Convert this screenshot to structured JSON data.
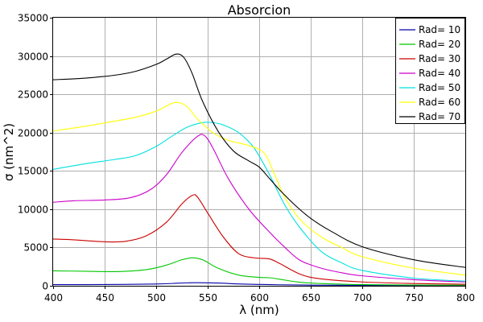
{
  "chart_data": {
    "type": "line",
    "title": "Absorcion",
    "xlabel": "λ (nm)",
    "ylabel": "σ (nm^2)",
    "xlim": [
      400,
      800
    ],
    "ylim": [
      0,
      35000
    ],
    "xticks": [
      400,
      450,
      500,
      550,
      600,
      650,
      700,
      750,
      800
    ],
    "yticks": [
      0,
      5000,
      10000,
      15000,
      20000,
      25000,
      30000,
      35000
    ],
    "grid": true,
    "legend_position": "top-right",
    "series": [
      {
        "name": "Rad= 10",
        "color": "#0000aa",
        "x": [
          400,
          450,
          500,
          520,
          530,
          540,
          560,
          580,
          600,
          620,
          650,
          700,
          800
        ],
        "y": [
          150,
          160,
          230,
          330,
          380,
          400,
          360,
          240,
          180,
          130,
          90,
          60,
          30
        ]
      },
      {
        "name": "Rad= 20",
        "color": "#00c800",
        "x": [
          400,
          430,
          460,
          490,
          510,
          525,
          535,
          545,
          560,
          580,
          600,
          610,
          620,
          640,
          660,
          700,
          750,
          800
        ],
        "y": [
          1950,
          1900,
          1850,
          2100,
          2700,
          3400,
          3650,
          3400,
          2300,
          1400,
          1100,
          1050,
          850,
          450,
          300,
          150,
          100,
          80
        ]
      },
      {
        "name": "Rad= 30",
        "color": "#cc0000",
        "x": [
          400,
          420,
          450,
          470,
          490,
          510,
          525,
          535,
          540,
          550,
          565,
          580,
          595,
          610,
          620,
          640,
          660,
          700,
          750,
          800
        ],
        "y": [
          6100,
          6000,
          5750,
          5800,
          6500,
          8300,
          10700,
          11800,
          11600,
          9500,
          6400,
          4200,
          3650,
          3500,
          2900,
          1500,
          900,
          500,
          300,
          200
        ]
      },
      {
        "name": "Rad= 40",
        "color": "#cc00cc",
        "x": [
          400,
          420,
          450,
          475,
          495,
          510,
          525,
          540,
          547,
          555,
          570,
          590,
          610,
          625,
          640,
          660,
          680,
          700,
          750,
          800
        ],
        "y": [
          10900,
          11100,
          11200,
          11500,
          12600,
          14500,
          17400,
          19500,
          19600,
          18000,
          14000,
          10000,
          7000,
          5000,
          3300,
          2300,
          1700,
          1300,
          800,
          500
        ]
      },
      {
        "name": "Rad= 50",
        "color": "#00e0e0",
        "x": [
          400,
          430,
          460,
          480,
          500,
          515,
          530,
          545,
          555,
          565,
          580,
          595,
          610,
          625,
          640,
          660,
          680,
          700,
          750,
          800
        ],
        "y": [
          15200,
          15900,
          16500,
          17000,
          18200,
          19500,
          20700,
          21300,
          21300,
          21000,
          20000,
          18000,
          14500,
          10500,
          7500,
          4500,
          3000,
          2000,
          1000,
          600
        ]
      },
      {
        "name": "Rad= 60",
        "color": "#ffff00",
        "x": [
          400,
          430,
          460,
          480,
          500,
          515,
          522,
          530,
          540,
          555,
          570,
          590,
          605,
          615,
          625,
          640,
          660,
          680,
          700,
          750,
          800
        ],
        "y": [
          20200,
          20800,
          21500,
          22000,
          22800,
          23800,
          23900,
          23400,
          21800,
          20000,
          19000,
          18300,
          17300,
          14500,
          11500,
          8600,
          6400,
          5000,
          3800,
          2300,
          1400
        ]
      },
      {
        "name": "Rad= 70",
        "color": "#000000",
        "x": [
          400,
          430,
          460,
          480,
          500,
          510,
          518,
          523,
          528,
          535,
          545,
          560,
          575,
          590,
          600,
          610,
          620,
          635,
          650,
          670,
          700,
          750,
          800
        ],
        "y": [
          26900,
          27100,
          27500,
          28000,
          28900,
          29600,
          30200,
          30200,
          29600,
          27700,
          24100,
          20200,
          17600,
          16300,
          15500,
          14000,
          12500,
          10500,
          8800,
          7100,
          5100,
          3400,
          2400
        ]
      }
    ]
  }
}
